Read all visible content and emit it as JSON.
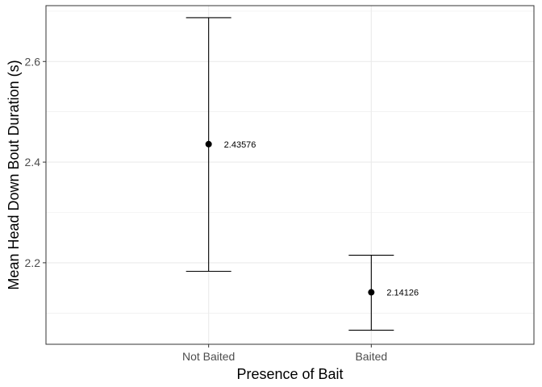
{
  "chart_data": {
    "type": "scatter",
    "title": "",
    "xlabel": "Presence of Bait",
    "ylabel": "Mean Head Down Bout Duration (s)",
    "categories": [
      "Not Baited",
      "Baited"
    ],
    "series": [
      {
        "values": [
          2.43576,
          2.14126
        ],
        "lower": [
          2.183,
          2.066
        ],
        "upper": [
          2.687,
          2.215
        ],
        "labels": [
          "2.43576",
          "2.14126"
        ]
      }
    ],
    "ylim": [
      2.038,
      2.711
    ],
    "y_ticks": [
      2.2,
      2.4,
      2.6
    ],
    "y_tick_labels": [
      "2.2",
      "2.4",
      "2.6"
    ],
    "grid": true,
    "legend": "none",
    "colors": {
      "point": "#000000",
      "errorbar": "#000000",
      "grid": "#ebebeb",
      "panel_border": "#333333"
    }
  }
}
